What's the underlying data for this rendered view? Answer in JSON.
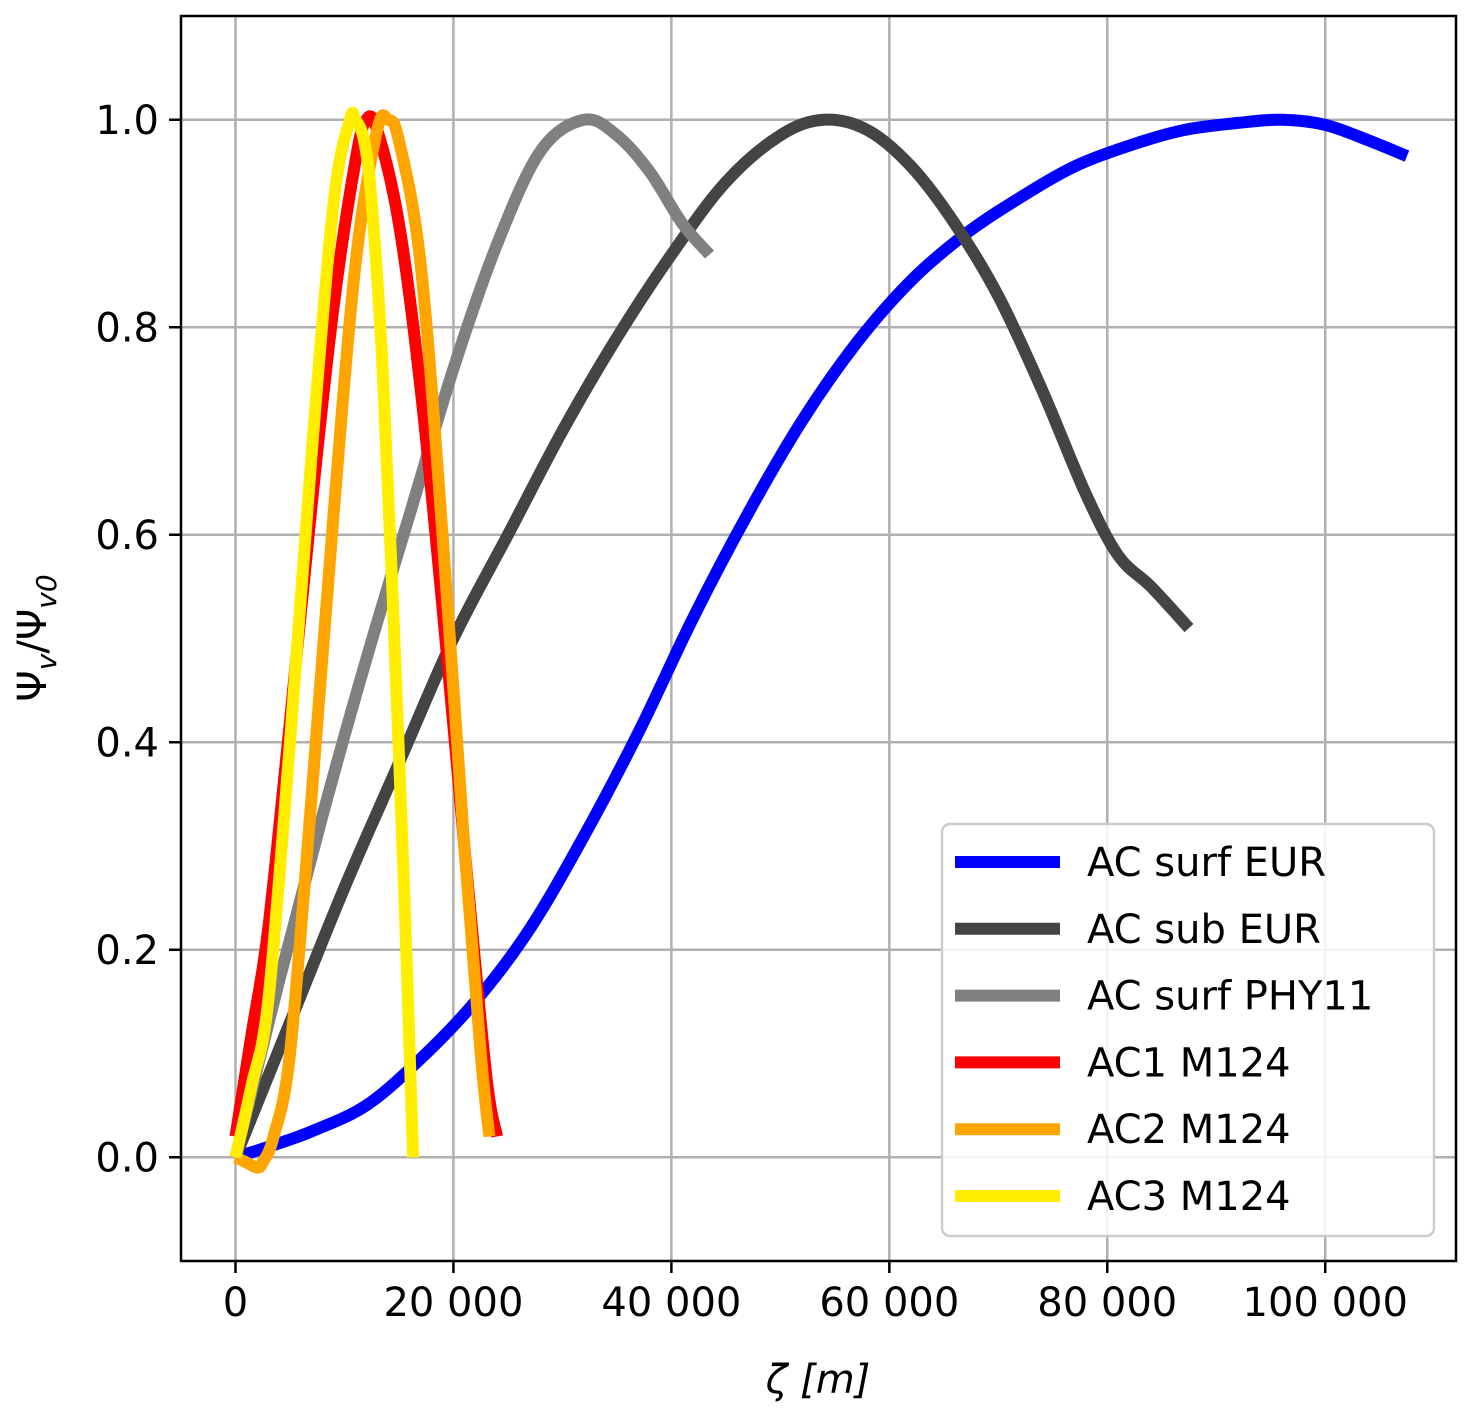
{
  "chart_data": {
    "type": "line",
    "xlabel": "ζ [m]",
    "ylabel": "Ψv/Ψv0",
    "xlim": [
      -5000,
      112000
    ],
    "ylim": [
      -0.1,
      1.1
    ],
    "grid": true,
    "legend_position": "lower-right",
    "x_ticks": [
      0,
      20000,
      40000,
      60000,
      80000,
      100000
    ],
    "x_tick_labels": [
      "0",
      "20 000",
      "40 000",
      "60 000",
      "80 000",
      "100 000"
    ],
    "y_ticks": [
      0.0,
      0.2,
      0.4,
      0.6,
      0.8,
      1.0
    ],
    "y_tick_labels": [
      "0.0",
      "0.2",
      "0.4",
      "0.6",
      "0.8",
      "1.0"
    ],
    "series": [
      {
        "name": "AC surf EUR",
        "color": "#0000ff",
        "x": [
          0,
          3000,
          7000,
          12000,
          17000,
          22000,
          27000,
          32000,
          37000,
          42000,
          47000,
          52000,
          57000,
          62000,
          67000,
          72000,
          77000,
          82000,
          87000,
          92000,
          96000,
          100000,
          104000,
          107500
        ],
        "y": [
          0.0,
          0.01,
          0.025,
          0.05,
          0.095,
          0.15,
          0.22,
          0.31,
          0.41,
          0.52,
          0.62,
          0.71,
          0.785,
          0.845,
          0.89,
          0.925,
          0.955,
          0.975,
          0.99,
          0.997,
          1.0,
          0.995,
          0.98,
          0.965
        ]
      },
      {
        "name": "AC sub EUR",
        "color": "#444444",
        "x": [
          0,
          5000,
          10000,
          15000,
          20000,
          25000,
          30000,
          35000,
          40000,
          45000,
          50000,
          54000,
          58000,
          62000,
          66000,
          70000,
          74000,
          78000,
          81000,
          84000,
          87500
        ],
        "y": [
          0.0,
          0.13,
          0.26,
          0.38,
          0.5,
          0.6,
          0.7,
          0.79,
          0.87,
          0.94,
          0.985,
          1.0,
          0.99,
          0.955,
          0.9,
          0.83,
          0.74,
          0.64,
          0.58,
          0.55,
          0.51
        ]
      },
      {
        "name": "AC surf PHY11",
        "color": "#808080",
        "x": [
          0,
          4000,
          8000,
          12000,
          16000,
          20000,
          24000,
          28000,
          32000,
          35000,
          38000,
          41000,
          43500
        ],
        "y": [
          0.0,
          0.17,
          0.33,
          0.48,
          0.62,
          0.76,
          0.88,
          0.97,
          1.0,
          0.985,
          0.95,
          0.9,
          0.87
        ]
      },
      {
        "name": "AC1 M124",
        "color": "#ff0000",
        "x": [
          0,
          1500,
          3000,
          5000,
          7000,
          9000,
          11000,
          12000,
          13000,
          15000,
          17000,
          19000,
          21000,
          23000,
          24000
        ],
        "y": [
          0.02,
          0.12,
          0.22,
          0.42,
          0.63,
          0.82,
          0.96,
          1.0,
          0.99,
          0.9,
          0.74,
          0.53,
          0.3,
          0.08,
          0.02
        ]
      },
      {
        "name": "AC2 M124",
        "color": "#ffa500",
        "x": [
          0,
          1000,
          2000,
          2500,
          3500,
          5000,
          7000,
          9000,
          11000,
          13000,
          14000,
          15000,
          17000,
          19000,
          21000,
          22500,
          23300
        ],
        "y": [
          0.0,
          -0.005,
          -0.01,
          -0.005,
          0.02,
          0.1,
          0.35,
          0.62,
          0.86,
          0.99,
          1.0,
          0.98,
          0.86,
          0.6,
          0.3,
          0.1,
          0.02
        ]
      },
      {
        "name": "AC3 M124",
        "color": "#ffee00",
        "x": [
          0,
          1500,
          3000,
          5000,
          7000,
          9000,
          10500,
          11000,
          11800,
          12500,
          13500,
          14500,
          15500,
          16300
        ],
        "y": [
          0.0,
          0.07,
          0.15,
          0.4,
          0.68,
          0.92,
          1.0,
          1.0,
          0.98,
          0.92,
          0.76,
          0.52,
          0.25,
          0.0
        ]
      }
    ]
  }
}
